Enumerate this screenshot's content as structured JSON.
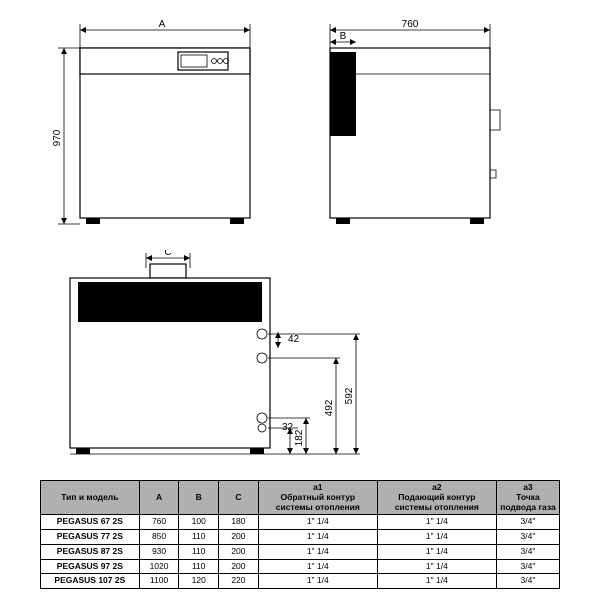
{
  "dimensions": {
    "front_width_label": "A",
    "front_height": "970",
    "side_depth": "760",
    "side_offset_label": "B",
    "rear_offset_label": "C",
    "rear_top_port": "42",
    "rear_h1": "592",
    "rear_h2": "492",
    "rear_h3": "182",
    "rear_h4": "32"
  },
  "table": {
    "headers": {
      "model": "Тип  и модель",
      "A": "A",
      "B": "B",
      "C": "C",
      "a1_top": "a1",
      "a1_bot": "Обратный контур системы отопления",
      "a2_top": "a2",
      "a2_bot": "Подающий контур системы отопления",
      "a3_top": "a3",
      "a3_bot": "Точка подвода газа"
    },
    "rows": [
      {
        "model": "PEGASUS 67 2S",
        "A": "760",
        "B": "100",
        "C": "180",
        "a1": "1\" 1/4",
        "a2": "1\" 1/4",
        "a3": "3/4\""
      },
      {
        "model": "PEGASUS 77 2S",
        "A": "850",
        "B": "110",
        "C": "200",
        "a1": "1\" 1/4",
        "a2": "1\" 1/4",
        "a3": "3/4\""
      },
      {
        "model": "PEGASUS 87 2S",
        "A": "930",
        "B": "110",
        "C": "200",
        "a1": "1\" 1/4",
        "a2": "1\" 1/4",
        "a3": "3/4\""
      },
      {
        "model": "PEGASUS 97 2S",
        "A": "1020",
        "B": "110",
        "C": "200",
        "a1": "1\" 1/4",
        "a2": "1\" 1/4",
        "a3": "3/4\""
      },
      {
        "model": "PEGASUS 107 2S",
        "A": "1100",
        "B": "120",
        "C": "220",
        "a1": "1\" 1/4",
        "a2": "1\" 1/4",
        "a3": "3/4\""
      }
    ]
  },
  "style": {
    "bg": "#ffffff",
    "line": "#000000",
    "header_bg": "#b0b0b0",
    "font_size_dim": 10,
    "font_size_table": 8.5
  }
}
